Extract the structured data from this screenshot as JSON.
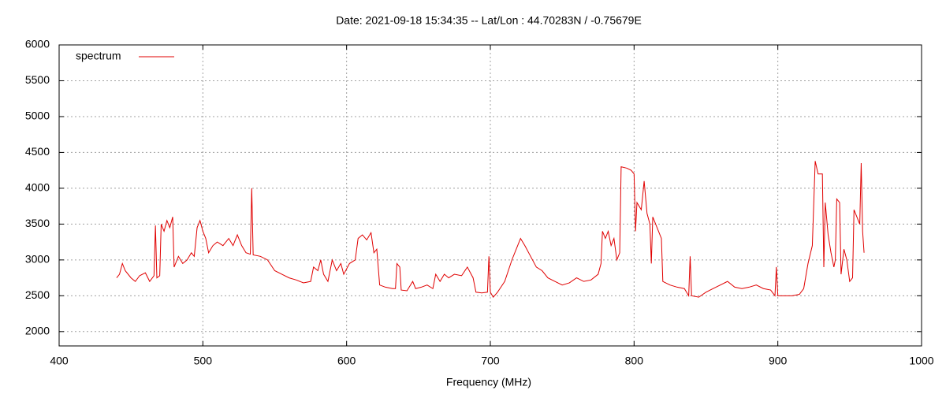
{
  "chart_data": {
    "type": "line",
    "title": "Date: 2021-09-18 15:34:35  --  Lat/Lon : 44.70283N / -0.75679E",
    "xlabel": "Frequency (MHz)",
    "xlim": [
      400,
      1000
    ],
    "xticks": [
      400,
      500,
      600,
      700,
      800,
      900,
      1000
    ],
    "ylim": [
      1800,
      6000
    ],
    "yticks": [
      2000,
      2500,
      3000,
      3500,
      4000,
      4500,
      5000,
      5500,
      6000
    ],
    "grid": true,
    "legend": "top-left",
    "x": [
      440,
      442,
      444,
      446,
      450,
      453,
      456,
      460,
      463,
      466,
      467,
      468,
      470,
      471,
      473,
      475,
      477,
      479,
      480,
      483,
      486,
      489,
      492,
      494,
      496,
      498,
      500,
      502,
      504,
      507,
      510,
      514,
      518,
      521,
      524,
      527,
      530,
      533,
      534,
      535,
      540,
      545,
      550,
      555,
      560,
      565,
      570,
      575,
      577,
      580,
      582,
      584,
      587,
      590,
      593,
      596,
      598,
      602,
      606,
      608,
      611,
      614,
      617,
      619,
      621,
      623,
      627,
      632,
      634,
      635,
      637,
      638,
      642,
      646,
      648,
      652,
      656,
      660,
      662,
      665,
      668,
      671,
      675,
      680,
      684,
      688,
      690,
      694,
      698,
      699,
      700,
      702,
      705,
      710,
      715,
      719,
      721,
      724,
      728,
      732,
      736,
      740,
      745,
      750,
      755,
      760,
      765,
      770,
      775,
      777,
      778,
      780,
      782,
      784,
      786,
      788,
      790,
      791,
      795,
      798,
      800,
      801,
      802,
      805,
      807,
      809,
      811,
      812,
      813,
      816,
      819,
      820,
      825,
      830,
      835,
      838,
      839,
      840,
      845,
      850,
      855,
      860,
      865,
      870,
      875,
      880,
      885,
      890,
      895,
      898,
      899,
      900,
      905,
      910,
      915,
      918,
      921,
      924,
      926,
      928,
      931,
      932,
      933,
      935,
      937,
      939,
      940,
      941,
      943,
      944,
      946,
      948,
      950,
      952,
      953,
      955,
      957,
      958,
      959,
      960
    ],
    "series": [
      {
        "name": "spectrum",
        "color": "#e00000",
        "values": [
          2750,
          2800,
          2950,
          2850,
          2750,
          2700,
          2780,
          2820,
          2700,
          2780,
          3480,
          2750,
          2780,
          3500,
          3400,
          3550,
          3450,
          3600,
          2900,
          3050,
          2950,
          3000,
          3100,
          3050,
          3450,
          3550,
          3400,
          3300,
          3100,
          3200,
          3250,
          3200,
          3300,
          3200,
          3350,
          3200,
          3100,
          3080,
          4000,
          3070,
          3050,
          3000,
          2850,
          2800,
          2750,
          2720,
          2680,
          2700,
          2900,
          2850,
          3000,
          2800,
          2700,
          3000,
          2850,
          2950,
          2800,
          2950,
          3000,
          3300,
          3350,
          3280,
          3380,
          3100,
          3150,
          2650,
          2620,
          2600,
          2600,
          2950,
          2900,
          2580,
          2570,
          2700,
          2600,
          2620,
          2650,
          2600,
          2800,
          2700,
          2800,
          2750,
          2800,
          2780,
          2900,
          2750,
          2550,
          2540,
          2550,
          3050,
          2550,
          2480,
          2550,
          2700,
          3000,
          3200,
          3300,
          3200,
          3050,
          2900,
          2850,
          2750,
          2700,
          2650,
          2680,
          2750,
          2700,
          2720,
          2800,
          2950,
          3400,
          3300,
          3400,
          3200,
          3300,
          3000,
          3100,
          4300,
          4280,
          4250,
          4200,
          3400,
          3800,
          3700,
          4100,
          3650,
          3500,
          2950,
          3600,
          3450,
          3300,
          2700,
          2650,
          2620,
          2600,
          2500,
          3050,
          2500,
          2480,
          2550,
          2600,
          2650,
          2700,
          2620,
          2600,
          2620,
          2650,
          2600,
          2580,
          2500,
          2900,
          2500,
          2500,
          2500,
          2520,
          2600,
          2950,
          3200,
          4380,
          4200,
          4200,
          2900,
          3800,
          3350,
          3100,
          2900,
          3000,
          3850,
          3800,
          2800,
          3150,
          3000,
          2700,
          2750,
          3700,
          3600,
          3500,
          4350,
          3400,
          3100
        ]
      }
    ]
  }
}
